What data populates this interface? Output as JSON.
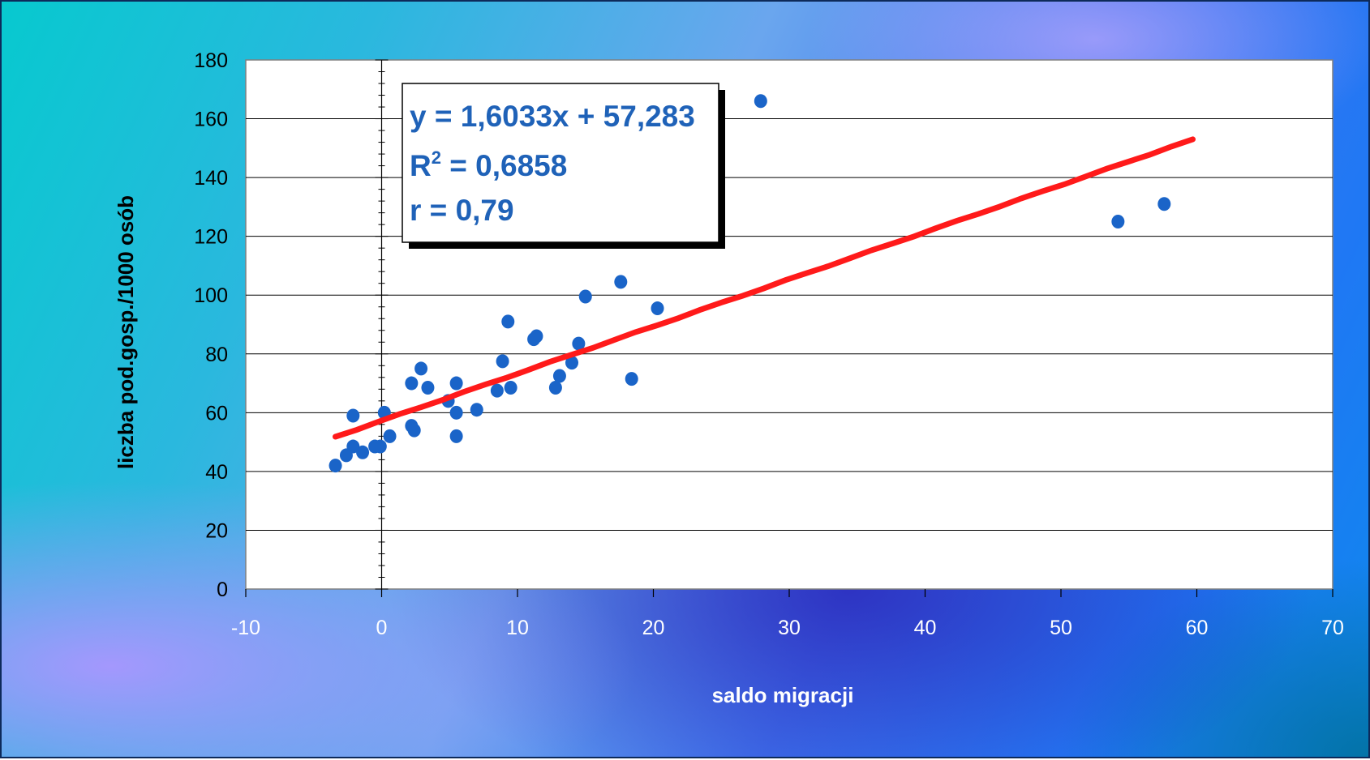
{
  "chart_data": {
    "type": "scatter",
    "title": "",
    "xlabel": "saldo migracji",
    "ylabel": "liczba pod.gosp./1000 osób",
    "xlim": [
      -10,
      70
    ],
    "ylim": [
      0,
      180
    ],
    "xticks": [
      -10,
      0,
      10,
      20,
      30,
      40,
      50,
      60,
      70
    ],
    "yticks": [
      0,
      20,
      40,
      60,
      80,
      100,
      120,
      140,
      160,
      180
    ],
    "grid": "horizontal",
    "series": [
      {
        "name": "",
        "color": "#1a64c8",
        "points": [
          [
            -3.4,
            42
          ],
          [
            -2.6,
            45.5
          ],
          [
            -2.1,
            48.5
          ],
          [
            -2.1,
            59
          ],
          [
            -1.4,
            46.5
          ],
          [
            -0.5,
            48.5
          ],
          [
            -0.1,
            48.5
          ],
          [
            0.2,
            60
          ],
          [
            0.6,
            52
          ],
          [
            2.2,
            70
          ],
          [
            2.2,
            55.5
          ],
          [
            2.4,
            54
          ],
          [
            2.9,
            75
          ],
          [
            3.4,
            68.5
          ],
          [
            4.9,
            64
          ],
          [
            5.5,
            70
          ],
          [
            5.5,
            60
          ],
          [
            5.5,
            52
          ],
          [
            7.0,
            61
          ],
          [
            8.5,
            67.5
          ],
          [
            8.9,
            77.5
          ],
          [
            9.3,
            91
          ],
          [
            9.5,
            68.5
          ],
          [
            11.2,
            85
          ],
          [
            11.4,
            86
          ],
          [
            12.8,
            68.5
          ],
          [
            13.1,
            72.5
          ],
          [
            14.0,
            77
          ],
          [
            14.5,
            83.5
          ],
          [
            15.0,
            99.5
          ],
          [
            17.6,
            104.5
          ],
          [
            18.4,
            71.5
          ],
          [
            20.3,
            95.5
          ],
          [
            27.9,
            166
          ],
          [
            54.2,
            125
          ],
          [
            57.6,
            131
          ]
        ]
      }
    ],
    "trendline": {
      "color": "#ff1a1a",
      "slope": 1.6033,
      "intercept": 57.283,
      "x_start": -3.4,
      "x_end": 59.7
    },
    "annotation": {
      "line1": "y = 1,6033x + 57,283",
      "line2_prefix": "R",
      "line2_sup": "2",
      "line2_suffix": " = 0,6858",
      "line3": "r = 0,79"
    }
  }
}
